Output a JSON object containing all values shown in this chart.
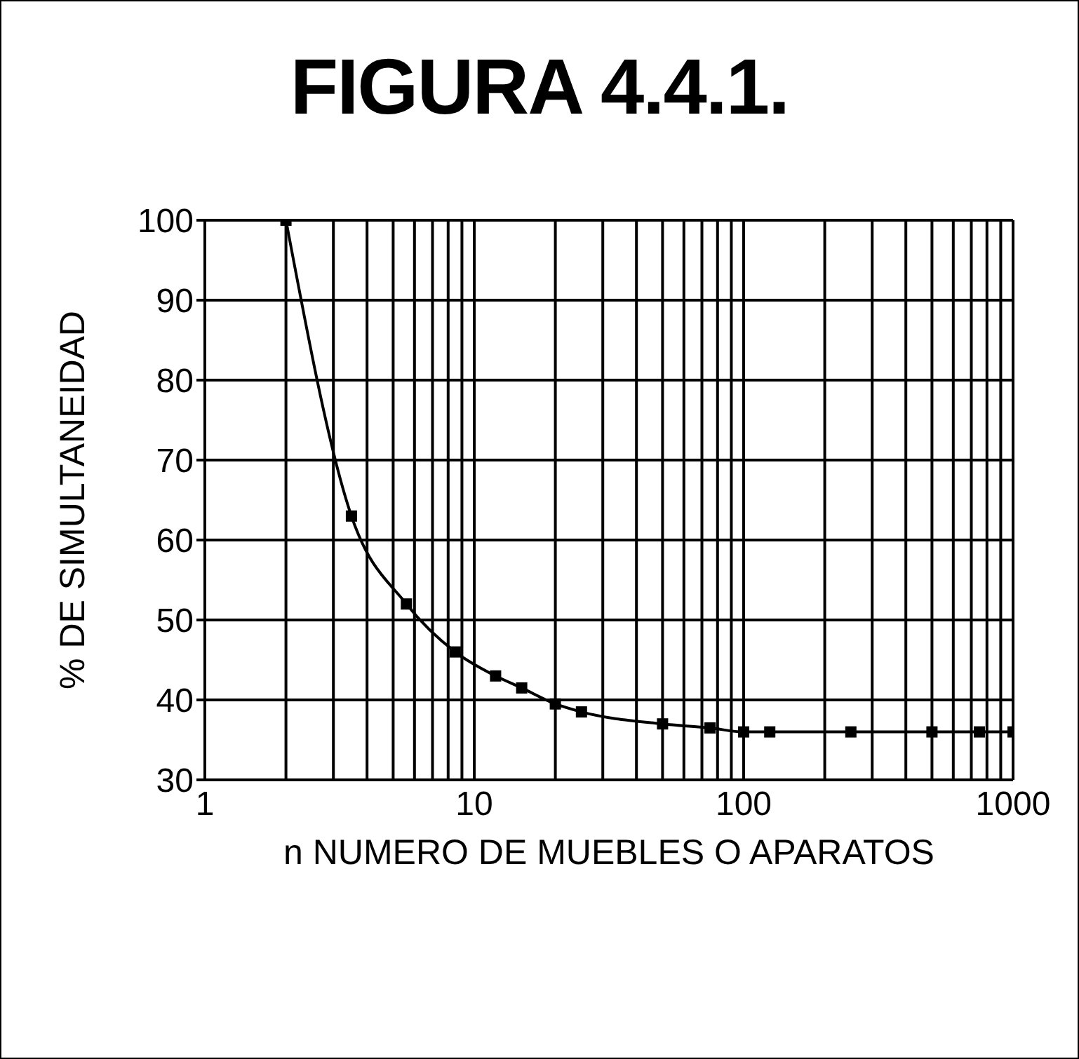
{
  "chart_data": {
    "type": "line",
    "title": "FIGURA 4.4.1.",
    "xlabel": "n NUMERO DE MUEBLES O APARATOS",
    "ylabel": "% DE SIMULTANEIDAD",
    "log": "x",
    "x": [
      2,
      3.5,
      5.6,
      8.5,
      12,
      15,
      20,
      25,
      50,
      75,
      100,
      125,
      250,
      500,
      750,
      1000
    ],
    "series": [
      {
        "color": "#000000",
        "values": [
          100,
          63,
          52,
          46,
          43,
          41.5,
          39.5,
          38.5,
          37,
          36.5,
          36,
          36,
          36,
          36,
          36,
          36
        ]
      }
    ],
    "xlim": [
      1,
      1000
    ],
    "xticks": [
      1,
      {
        "value": 2,
        "label": null
      },
      {
        "value": 3,
        "label": null
      },
      {
        "value": 4,
        "label": null
      },
      {
        "value": 5,
        "label": null
      },
      {
        "value": 6,
        "label": null
      },
      {
        "value": 7,
        "label": null
      },
      {
        "value": 8,
        "label": null
      },
      {
        "value": 9,
        "label": null
      },
      10,
      {
        "value": 20,
        "label": null
      },
      {
        "value": 30,
        "label": null
      },
      {
        "value": 40,
        "label": null
      },
      {
        "value": 50,
        "label": null
      },
      {
        "value": 60,
        "label": null
      },
      {
        "value": 70,
        "label": null
      },
      {
        "value": 80,
        "label": null
      },
      {
        "value": 90,
        "label": null
      },
      100,
      {
        "value": 200,
        "label": null
      },
      {
        "value": 300,
        "label": null
      },
      {
        "value": 400,
        "label": null
      },
      {
        "value": 500,
        "label": null
      },
      {
        "value": 600,
        "label": null
      },
      {
        "value": 700,
        "label": null
      },
      {
        "value": 800,
        "label": null
      },
      {
        "value": 900,
        "label": null
      },
      1000
    ],
    "ylim": [
      30,
      100
    ],
    "yticks": [
      30,
      40,
      50,
      60,
      70,
      80,
      90,
      100
    ],
    "grid": true,
    "marker": "square",
    "line_style": "solid"
  }
}
